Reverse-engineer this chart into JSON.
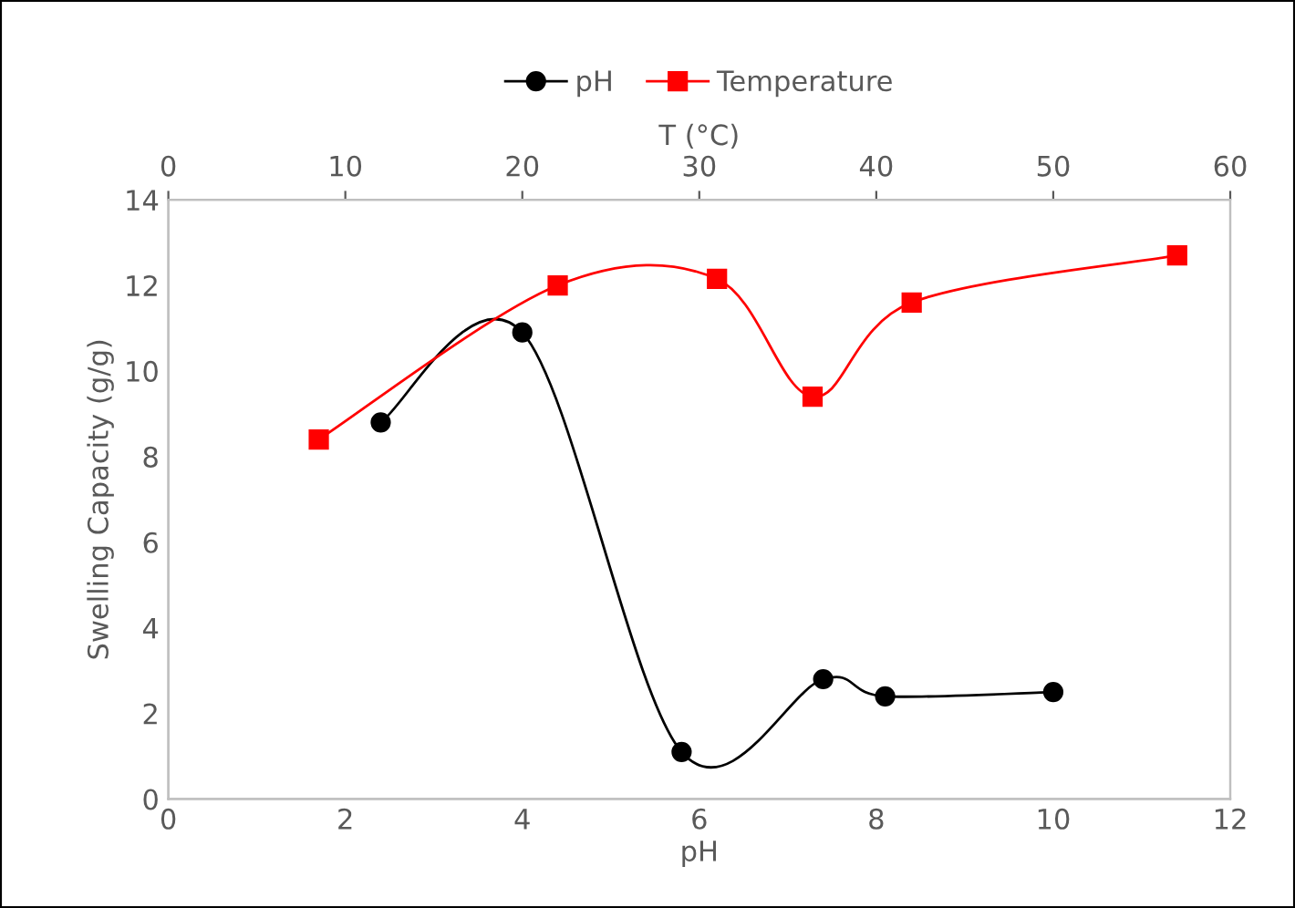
{
  "chart_data": {
    "type": "line",
    "xlabel": "pH",
    "ylabel": "Swelling Capacity (g/g)",
    "x2label": "T (°C)",
    "xlim": [
      0,
      12
    ],
    "xticks": [
      0,
      2,
      4,
      6,
      8,
      10,
      12
    ],
    "x2lim": [
      0,
      60
    ],
    "x2ticks": [
      0,
      10,
      20,
      30,
      40,
      50,
      60
    ],
    "ylim": [
      0,
      14
    ],
    "yticks": [
      0,
      2,
      4,
      6,
      8,
      10,
      12,
      14
    ],
    "grid": false,
    "legend": "top",
    "series": [
      {
        "name": "pH",
        "color": "#000000",
        "marker": "circle",
        "x": [
          2.4,
          4.0,
          5.8,
          7.4,
          8.1,
          10.0
        ],
        "values": [
          8.8,
          10.9,
          1.1,
          2.8,
          2.4,
          2.5
        ]
      },
      {
        "name": "Temperature",
        "color": "#ff0000",
        "marker": "square",
        "axis": "x2",
        "x": [
          8.5,
          22,
          31,
          36.4,
          42,
          57
        ],
        "values": [
          8.4,
          12.0,
          12.15,
          9.4,
          11.6,
          12.7
        ]
      }
    ]
  }
}
